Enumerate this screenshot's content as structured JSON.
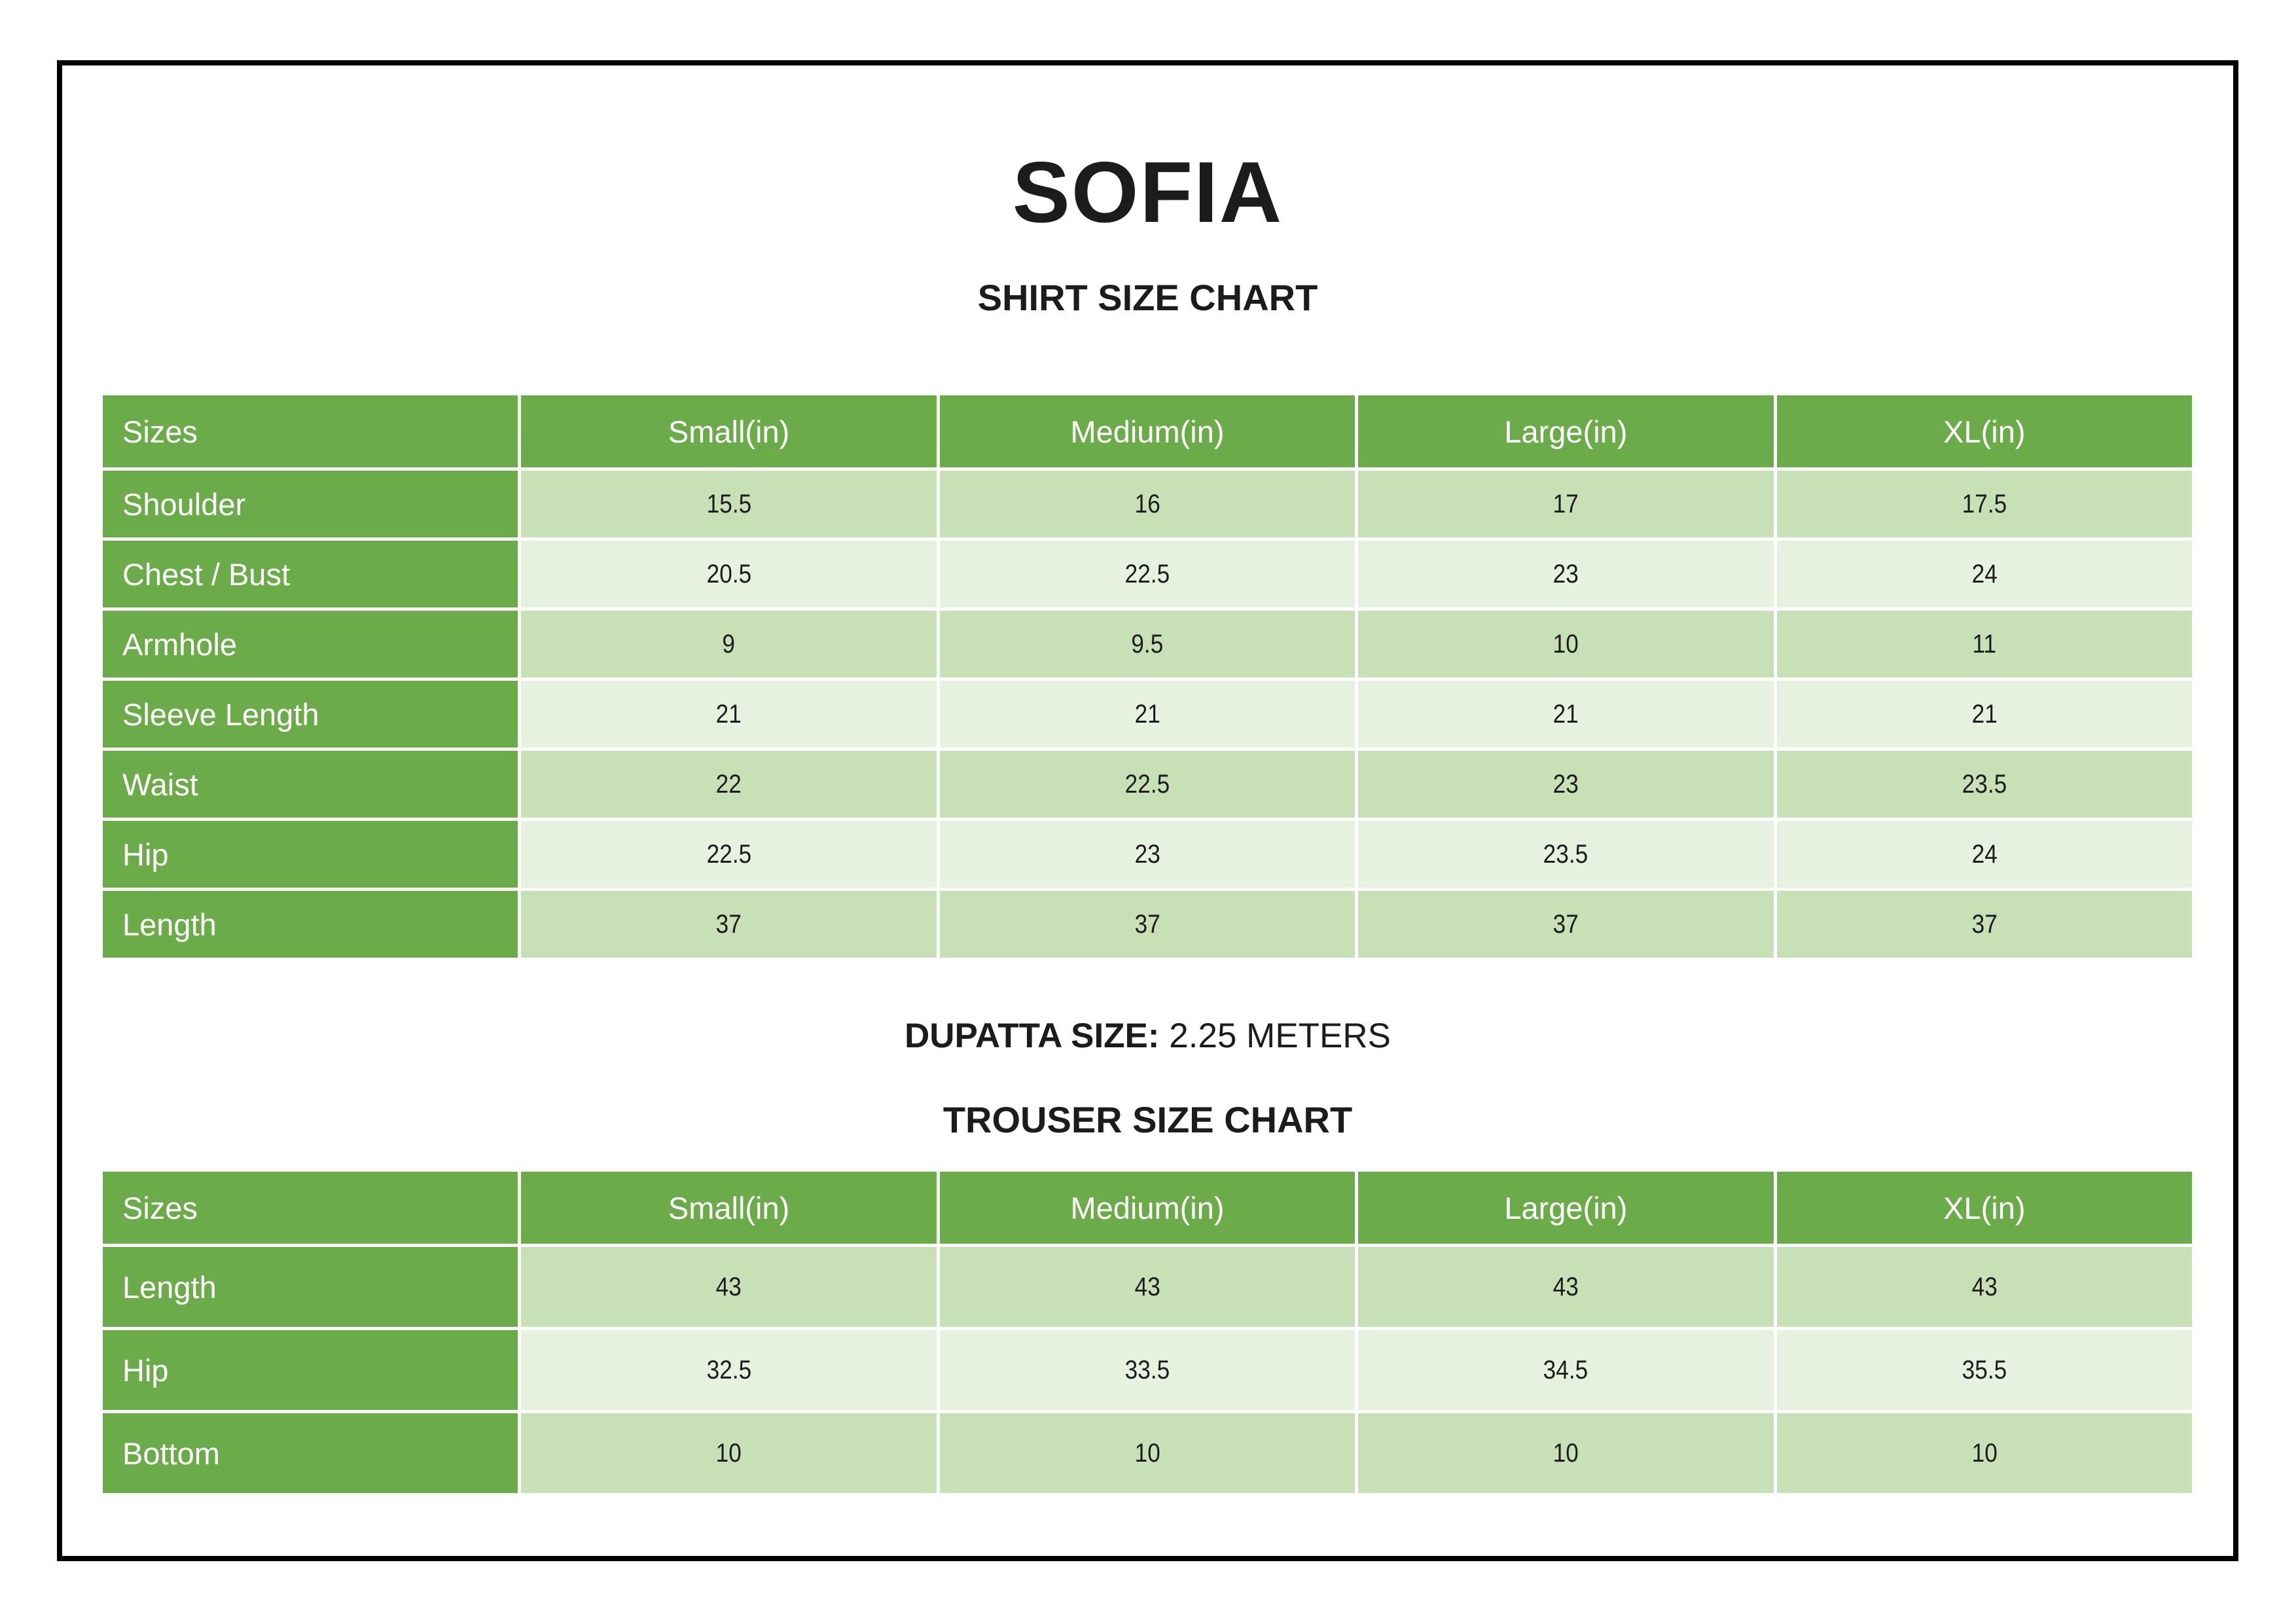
{
  "page": {
    "title": "SOFIA",
    "shirt_chart_title": "SHIRT SIZE CHART",
    "dupatta_label": "DUPATTA SIZE:",
    "dupatta_value": " 2.25 METERS",
    "trouser_chart_title": "TROUSER SIZE CHART"
  },
  "colors": {
    "table_header_green": "#6CAB4A",
    "row_band_dark": "#C8E0B6",
    "row_band_light": "#E7F1DF",
    "page_border": "#000000",
    "header_text": "#FFFFFF",
    "body_text": "#1C1C1C"
  },
  "shirt_table": {
    "columns": [
      "Sizes",
      "Small(in)",
      "Medium(in)",
      "Large(in)",
      "XL(in)"
    ],
    "rows": [
      {
        "label": "Shoulder",
        "values": [
          "15.5",
          "16",
          "17",
          "17.5"
        ]
      },
      {
        "label": "Chest / Bust",
        "values": [
          "20.5",
          "22.5",
          "23",
          "24"
        ]
      },
      {
        "label": "Armhole",
        "values": [
          "9",
          "9.5",
          "10",
          "11"
        ]
      },
      {
        "label": "Sleeve Length",
        "values": [
          "21",
          "21",
          "21",
          "21"
        ]
      },
      {
        "label": "Waist",
        "values": [
          "22",
          "22.5",
          "23",
          "23.5"
        ]
      },
      {
        "label": "Hip",
        "values": [
          "22.5",
          "23",
          "23.5",
          "24"
        ]
      },
      {
        "label": "Length",
        "values": [
          "37",
          "37",
          "37",
          "37"
        ]
      }
    ]
  },
  "trouser_table": {
    "columns": [
      "Sizes",
      "Small(in)",
      "Medium(in)",
      "Large(in)",
      "XL(in)"
    ],
    "rows": [
      {
        "label": "Length",
        "values": [
          "43",
          "43",
          "43",
          "43"
        ]
      },
      {
        "label": "Hip",
        "values": [
          "32.5",
          "33.5",
          "34.5",
          "35.5"
        ]
      },
      {
        "label": "Bottom",
        "values": [
          "10",
          "10",
          "10",
          "10"
        ]
      }
    ]
  }
}
